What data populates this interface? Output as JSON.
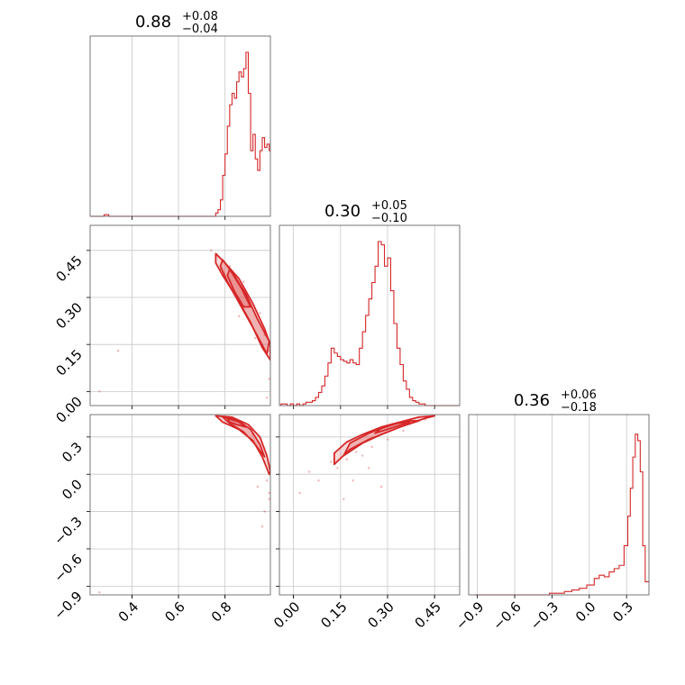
{
  "chart_data": {
    "type": "corner",
    "color": "#d62728",
    "grid": true,
    "parameters": [
      {
        "median": "0.88",
        "plus": "+0.08",
        "minus": "−0.04",
        "range": [
          0.22,
          0.995
        ],
        "ticks": [
          0.4,
          0.6,
          0.8
        ],
        "tick_labels": [
          "0.4",
          "0.6",
          "0.8"
        ],
        "hist_x": [
          0.22,
          0.24,
          0.26,
          0.28,
          0.3,
          0.32,
          0.34,
          0.36,
          0.38,
          0.4,
          0.42,
          0.44,
          0.46,
          0.48,
          0.5,
          0.52,
          0.54,
          0.56,
          0.58,
          0.6,
          0.62,
          0.64,
          0.66,
          0.68,
          0.7,
          0.72,
          0.74,
          0.76,
          0.77,
          0.78,
          0.79,
          0.8,
          0.81,
          0.82,
          0.83,
          0.84,
          0.85,
          0.86,
          0.87,
          0.88,
          0.89,
          0.9,
          0.91,
          0.92,
          0.93,
          0.94,
          0.95,
          0.96,
          0.97,
          0.98,
          0.99
        ],
        "hist_y": [
          0,
          0,
          0,
          0.01,
          0,
          0,
          0,
          0,
          0,
          0,
          0,
          0,
          0,
          0,
          0,
          0,
          0,
          0,
          0,
          0,
          0,
          0,
          0,
          0,
          0,
          0,
          0,
          0.02,
          0.04,
          0.1,
          0.25,
          0.38,
          0.55,
          0.68,
          0.75,
          0.72,
          0.82,
          0.88,
          0.85,
          0.9,
          1.0,
          0.75,
          0.4,
          0.5,
          0.35,
          0.28,
          0.4,
          0.48,
          0.42,
          0.44,
          0.4
        ]
      },
      {
        "median": "0.30",
        "plus": "+0.05",
        "minus": "−0.10",
        "range": [
          -0.045,
          0.53
        ],
        "ticks": [
          0.0,
          0.15,
          0.3,
          0.45
        ],
        "tick_labels": [
          "0.00",
          "0.15",
          "0.30",
          "0.45"
        ],
        "hist_x": [
          -0.04,
          -0.03,
          -0.02,
          -0.01,
          0.0,
          0.01,
          0.02,
          0.03,
          0.04,
          0.05,
          0.06,
          0.07,
          0.08,
          0.09,
          0.1,
          0.11,
          0.12,
          0.13,
          0.14,
          0.15,
          0.16,
          0.17,
          0.18,
          0.19,
          0.2,
          0.21,
          0.22,
          0.23,
          0.24,
          0.25,
          0.26,
          0.27,
          0.28,
          0.29,
          0.3,
          0.31,
          0.32,
          0.33,
          0.34,
          0.35,
          0.36,
          0.37,
          0.38,
          0.39,
          0.4,
          0.41,
          0.42,
          0.43,
          0.44,
          0.45,
          0.46,
          0.47,
          0.48,
          0.49,
          0.5,
          0.51,
          0.52
        ],
        "hist_y": [
          0.01,
          0.01,
          0,
          0.01,
          0,
          0.01,
          0,
          0.01,
          0.02,
          0.02,
          0.03,
          0.05,
          0.08,
          0.12,
          0.18,
          0.26,
          0.35,
          0.32,
          0.3,
          0.28,
          0.27,
          0.26,
          0.28,
          0.26,
          0.25,
          0.35,
          0.45,
          0.55,
          0.65,
          0.75,
          0.85,
          1.0,
          0.98,
          0.85,
          0.9,
          0.7,
          0.5,
          0.35,
          0.25,
          0.15,
          0.1,
          0.05,
          0.03,
          0.02,
          0.01,
          0.01,
          0,
          0,
          0,
          0,
          0,
          0,
          0,
          0,
          0,
          0,
          0
        ]
      },
      {
        "median": "0.36",
        "plus": "+0.06",
        "minus": "−0.18",
        "range": [
          -0.97,
          0.48
        ],
        "ticks": [
          -0.9,
          -0.6,
          -0.3,
          0.0,
          0.3
        ],
        "tick_labels": [
          "−0.9",
          "−0.6",
          "−0.3",
          "0.0",
          "0.3"
        ],
        "hist_x": [
          -0.92,
          -0.86,
          -0.8,
          -0.74,
          -0.68,
          -0.62,
          -0.56,
          -0.5,
          -0.44,
          -0.38,
          -0.32,
          -0.26,
          -0.2,
          -0.14,
          -0.08,
          -0.02,
          0.04,
          0.08,
          0.12,
          0.16,
          0.2,
          0.24,
          0.28,
          0.31,
          0.33,
          0.35,
          0.37,
          0.39,
          0.41,
          0.43,
          0.45,
          0.47
        ],
        "hist_y": [
          0,
          0,
          0,
          0,
          0,
          0,
          0,
          0,
          0,
          0,
          0.01,
          0.01,
          0.02,
          0.03,
          0.04,
          0.06,
          0.1,
          0.12,
          0.11,
          0.14,
          0.16,
          0.18,
          0.3,
          0.48,
          0.65,
          0.84,
          0.98,
          0.94,
          0.75,
          0.3,
          0.08,
          0.08
        ]
      }
    ],
    "panels_2d": [
      {
        "x_param": 0,
        "y_param": 1,
        "y_ticks": [
          0.0,
          0.15,
          0.3,
          0.45
        ],
        "y_tick_labels": [
          "0.00",
          "0.15",
          "0.30",
          "0.45"
        ],
        "contours": [
          [
            [
              0.76,
              0.44
            ],
            [
              0.8,
              0.41
            ],
            [
              0.86,
              0.36
            ],
            [
              0.92,
              0.28
            ],
            [
              0.97,
              0.2
            ],
            [
              0.995,
              0.15
            ],
            [
              0.995,
              0.1
            ],
            [
              0.96,
              0.14
            ],
            [
              0.91,
              0.22
            ],
            [
              0.85,
              0.3
            ],
            [
              0.79,
              0.37
            ],
            [
              0.76,
              0.41
            ]
          ],
          [
            [
              0.79,
              0.42
            ],
            [
              0.84,
              0.37
            ],
            [
              0.89,
              0.31
            ],
            [
              0.94,
              0.23
            ],
            [
              0.99,
              0.16
            ],
            [
              0.98,
              0.12
            ],
            [
              0.93,
              0.19
            ],
            [
              0.87,
              0.27
            ],
            [
              0.81,
              0.35
            ],
            [
              0.78,
              0.4
            ]
          ],
          [
            [
              0.82,
              0.39
            ],
            [
              0.87,
              0.33
            ],
            [
              0.91,
              0.27
            ],
            [
              0.88,
              0.27
            ],
            [
              0.84,
              0.32
            ],
            [
              0.81,
              0.37
            ]
          ]
        ],
        "scatter": [
          [
            0.74,
            0.45
          ],
          [
            0.77,
            0.43
          ],
          [
            0.78,
            0.39
          ],
          [
            0.82,
            0.4
          ],
          [
            0.83,
            0.33
          ],
          [
            0.88,
            0.35
          ],
          [
            0.9,
            0.29
          ],
          [
            0.95,
            0.25
          ],
          [
            0.97,
            0.18
          ],
          [
            0.99,
            0.13
          ],
          [
            0.34,
            0.13
          ],
          [
            0.26,
            0.0
          ],
          [
            0.99,
            0.04
          ],
          [
            0.98,
            -0.02
          ],
          [
            0.86,
            0.24
          ],
          [
            0.93,
            0.17
          ]
        ]
      },
      {
        "x_param": 0,
        "y_param": 2,
        "y_ticks": [
          -0.9,
          -0.6,
          -0.3,
          0.0,
          0.3
        ],
        "y_tick_labels": [
          "−0.9",
          "−0.6",
          "−0.3",
          "0.0",
          "0.3"
        ],
        "contours": [
          [
            [
              0.76,
              0.47
            ],
            [
              0.83,
              0.46
            ],
            [
              0.9,
              0.4
            ],
            [
              0.95,
              0.3
            ],
            [
              0.98,
              0.15
            ],
            [
              0.995,
              0.02
            ],
            [
              0.99,
              0.0
            ],
            [
              0.96,
              0.14
            ],
            [
              0.92,
              0.27
            ],
            [
              0.86,
              0.36
            ],
            [
              0.79,
              0.42
            ]
          ],
          [
            [
              0.79,
              0.46
            ],
            [
              0.85,
              0.44
            ],
            [
              0.91,
              0.36
            ],
            [
              0.95,
              0.24
            ],
            [
              0.97,
              0.14
            ],
            [
              0.93,
              0.24
            ],
            [
              0.88,
              0.34
            ],
            [
              0.82,
              0.41
            ]
          ],
          [
            [
              0.81,
              0.45
            ],
            [
              0.86,
              0.42
            ],
            [
              0.89,
              0.38
            ],
            [
              0.85,
              0.4
            ],
            [
              0.82,
              0.42
            ]
          ]
        ],
        "scatter": [
          [
            0.78,
            0.44
          ],
          [
            0.84,
            0.4
          ],
          [
            0.92,
            0.32
          ],
          [
            0.97,
            0.1
          ],
          [
            0.98,
            -0.05
          ],
          [
            0.99,
            -0.15
          ],
          [
            0.97,
            -0.3
          ],
          [
            0.96,
            -0.42
          ],
          [
            0.94,
            -0.1
          ],
          [
            0.26,
            -0.95
          ],
          [
            0.99,
            -0.2
          ],
          [
            0.9,
            0.38
          ]
        ]
      },
      {
        "x_param": 1,
        "y_param": 2,
        "y_ticks": [],
        "y_tick_labels": [],
        "contours": [
          [
            [
              0.13,
              0.08
            ],
            [
              0.18,
              0.2
            ],
            [
              0.24,
              0.28
            ],
            [
              0.3,
              0.34
            ],
            [
              0.36,
              0.4
            ],
            [
              0.42,
              0.45
            ],
            [
              0.45,
              0.47
            ],
            [
              0.4,
              0.46
            ],
            [
              0.34,
              0.42
            ],
            [
              0.28,
              0.38
            ],
            [
              0.22,
              0.32
            ],
            [
              0.17,
              0.26
            ],
            [
              0.13,
              0.17
            ]
          ],
          [
            [
              0.16,
              0.15
            ],
            [
              0.22,
              0.25
            ],
            [
              0.28,
              0.32
            ],
            [
              0.34,
              0.38
            ],
            [
              0.4,
              0.43
            ],
            [
              0.36,
              0.43
            ],
            [
              0.3,
              0.39
            ],
            [
              0.24,
              0.33
            ],
            [
              0.18,
              0.25
            ]
          ],
          [
            [
              0.26,
              0.33
            ],
            [
              0.31,
              0.37
            ],
            [
              0.37,
              0.42
            ],
            [
              0.33,
              0.41
            ],
            [
              0.28,
              0.37
            ]
          ]
        ],
        "scatter": [
          [
            0.14,
            0.05
          ],
          [
            0.12,
            0.1
          ],
          [
            0.17,
            0.12
          ],
          [
            0.2,
            0.18
          ],
          [
            0.22,
            0.15
          ],
          [
            0.25,
            0.22
          ],
          [
            0.3,
            0.28
          ],
          [
            0.08,
            -0.05
          ],
          [
            0.02,
            -0.15
          ],
          [
            0.19,
            -0.05
          ],
          [
            0.28,
            -0.1
          ],
          [
            0.16,
            -0.2
          ],
          [
            0.35,
            0.35
          ],
          [
            0.42,
            0.44
          ],
          [
            0.05,
            0.02
          ],
          [
            0.24,
            0.05
          ]
        ]
      }
    ]
  }
}
